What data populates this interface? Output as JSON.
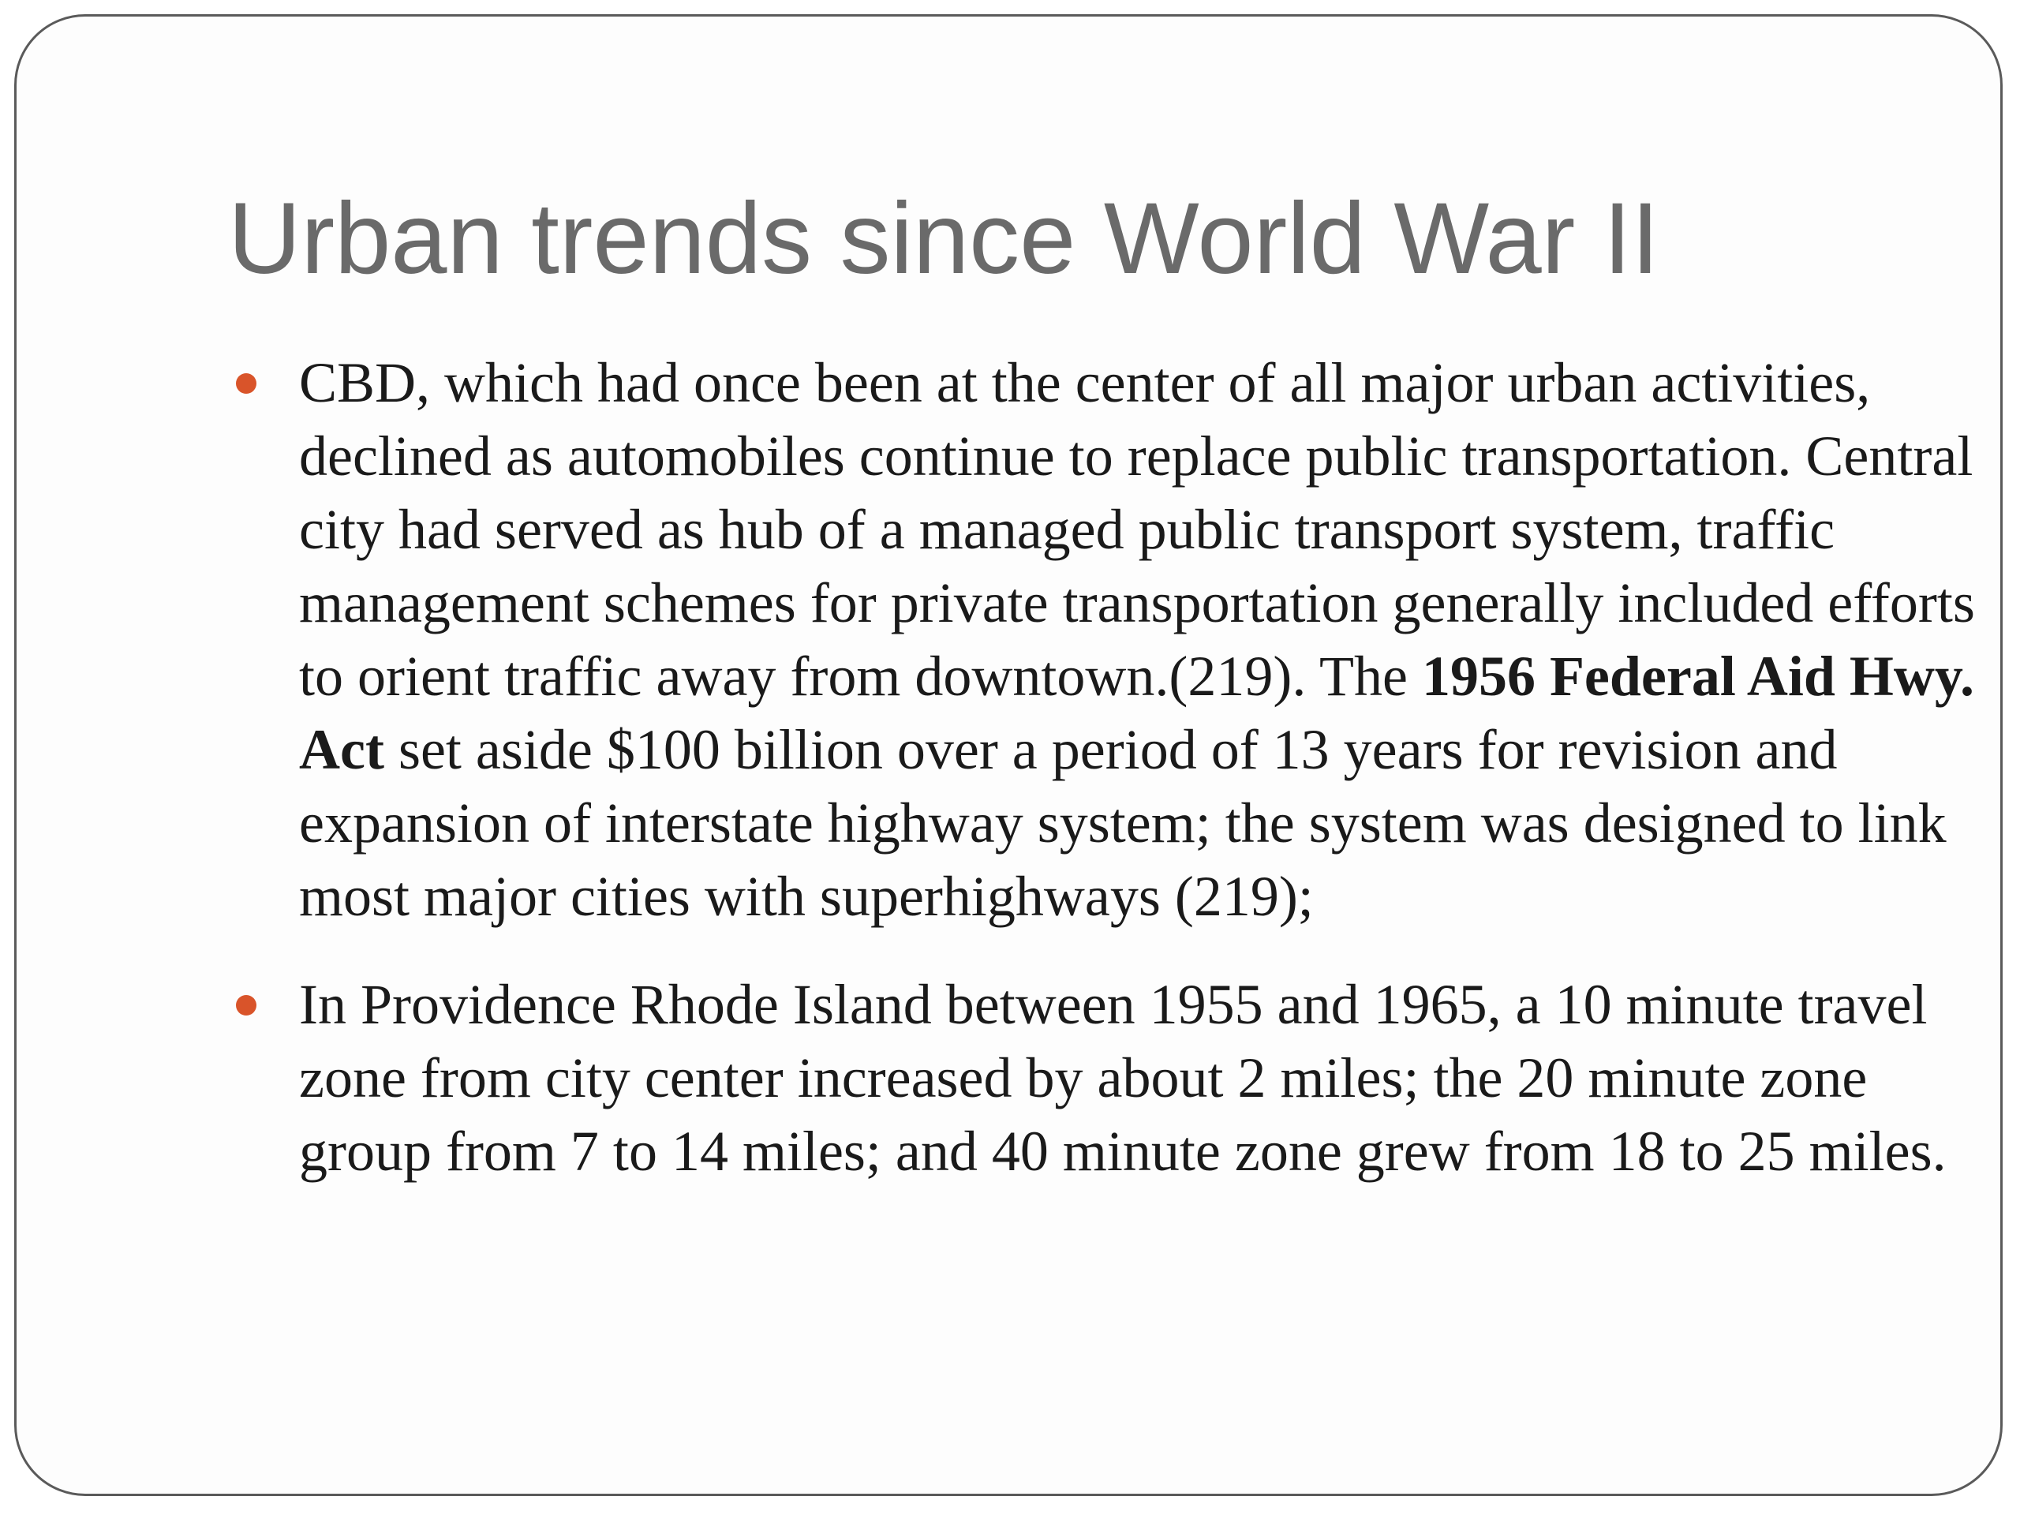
{
  "slide": {
    "title": "Urban trends since World War II",
    "accent_color": "#d9542a",
    "bullets": [
      {
        "text_before": "CBD, which had once been at the center of all major urban activities, declined as automobiles continue to replace public transportation. Central city had served as hub of a managed public transport system, traffic management schemes for private transportation generally included efforts to orient traffic away from downtown.(219). The ",
        "bold": "1956 Federal Aid Hwy. Act",
        "text_after": " set aside $100 billion over a period of 13 years for revision and expansion of interstate highway system; the system was designed to link most major cities with superhighways (219);"
      },
      {
        "text_before": "In Providence Rhode Island between 1955 and 1965, a 10 minute travel zone from city center increased by about 2 miles; the 20 minute zone group from 7 to 14 miles; and 40 minute zone grew from 18 to 25 miles.",
        "bold": "",
        "text_after": ""
      }
    ]
  }
}
